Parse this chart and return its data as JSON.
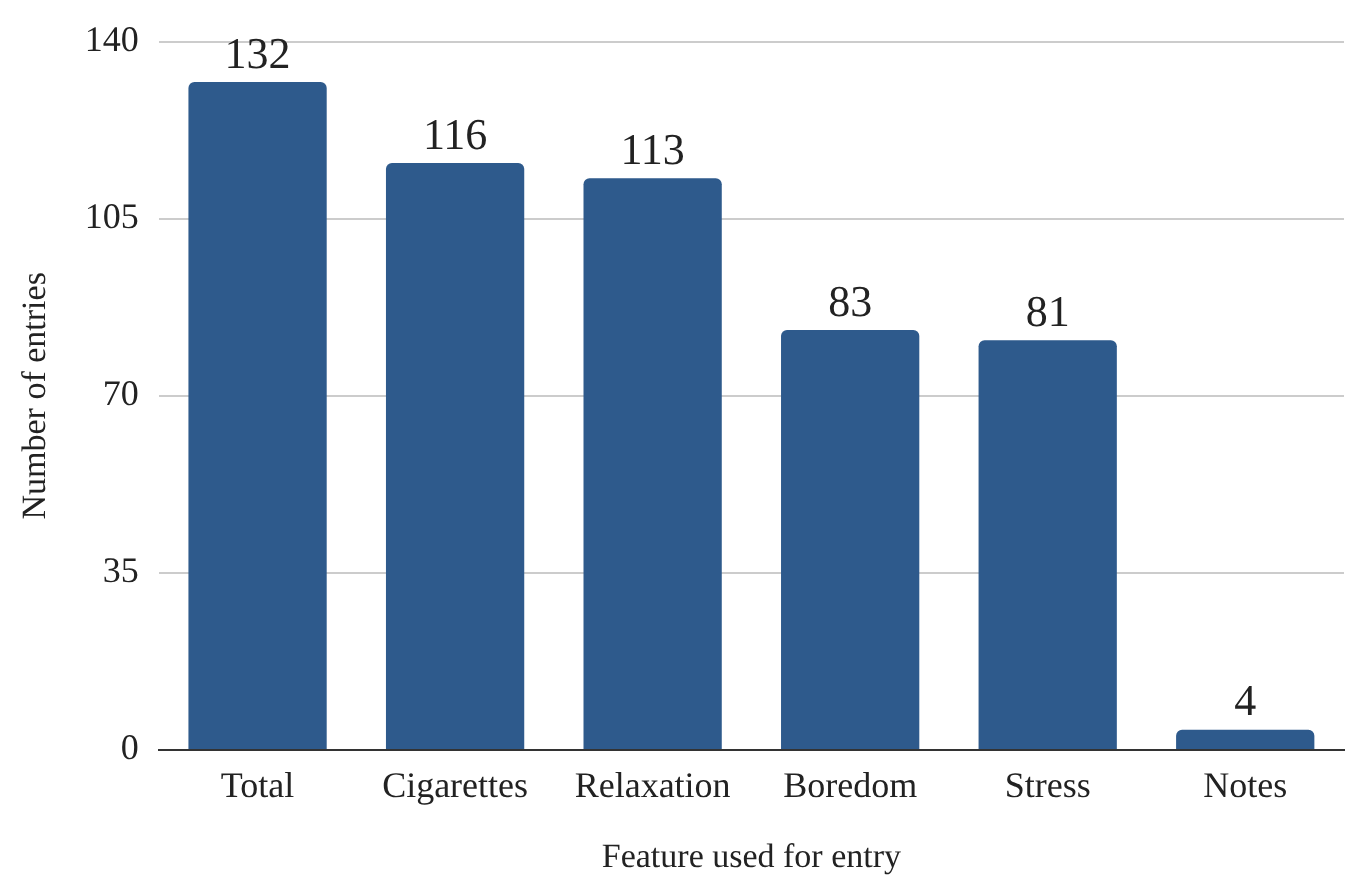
{
  "chart_data": {
    "type": "bar",
    "xlabel": "Feature used for entry",
    "ylabel": "Number of entries",
    "categories": [
      "Total",
      "Cigarettes",
      "Relaxation",
      "Boredom",
      "Stress",
      "Notes"
    ],
    "values": [
      132,
      116,
      113,
      83,
      81,
      4
    ],
    "color": "#2e5a8c",
    "ylim": [
      0,
      140
    ],
    "yticks": [
      0,
      35,
      70,
      105,
      140
    ],
    "grid": "y",
    "data_labels": true,
    "legend": false
  }
}
